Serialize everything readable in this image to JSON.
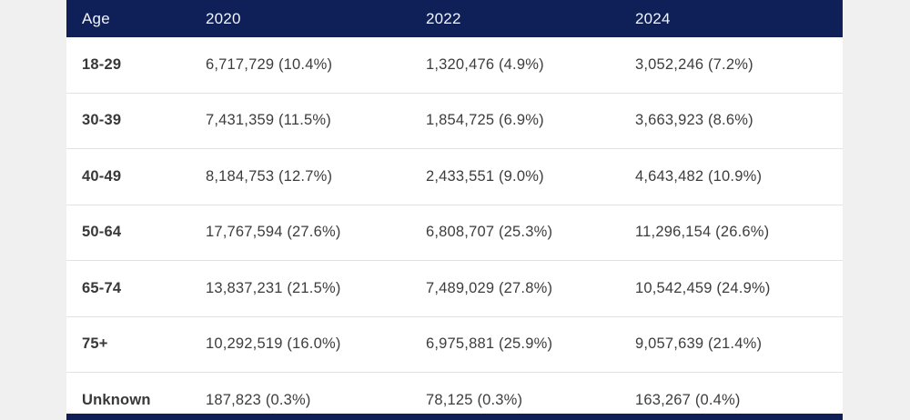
{
  "colors": {
    "header_bg": "#0e2057",
    "header_text": "#f4f5f8",
    "page_bg": "#f0f0f0",
    "row_bg": "#ffffff",
    "row_divider": "#e2e2e4",
    "cell_text": "#3d3d3d"
  },
  "table": {
    "columns": [
      {
        "key": "age",
        "label": "Age"
      },
      {
        "key": "y2020",
        "label": "2020"
      },
      {
        "key": "y2022",
        "label": "2022"
      },
      {
        "key": "y2024",
        "label": "2024"
      }
    ],
    "rows": [
      {
        "age": "18-29",
        "y2020": "6,717,729 (10.4%)",
        "y2022": "1,320,476 (4.9%)",
        "y2024": "3,052,246 (7.2%)"
      },
      {
        "age": "30-39",
        "y2020": "7,431,359 (11.5%)",
        "y2022": "1,854,725 (6.9%)",
        "y2024": "3,663,923 (8.6%)"
      },
      {
        "age": "40-49",
        "y2020": "8,184,753 (12.7%)",
        "y2022": "2,433,551 (9.0%)",
        "y2024": "4,643,482 (10.9%)"
      },
      {
        "age": "50-64",
        "y2020": "17,767,594 (27.6%)",
        "y2022": "6,808,707 (25.3%)",
        "y2024": "11,296,154 (26.6%)"
      },
      {
        "age": "65-74",
        "y2020": "13,837,231 (21.5%)",
        "y2022": "7,489,029 (27.8%)",
        "y2024": "10,542,459 (24.9%)"
      },
      {
        "age": "75+",
        "y2020": "10,292,519 (16.0%)",
        "y2022": "6,975,881 (25.9%)",
        "y2024": "9,057,639 (21.4%)"
      },
      {
        "age": "Unknown",
        "y2020": "187,823 (0.3%)",
        "y2022": "78,125 (0.3%)",
        "y2024": "163,267 (0.4%)"
      }
    ]
  },
  "chart_data": {
    "type": "table",
    "title": "",
    "categories": [
      "18-29",
      "30-39",
      "40-49",
      "50-64",
      "65-74",
      "75+",
      "Unknown"
    ],
    "series": [
      {
        "name": "2020",
        "values": [
          6717729,
          7431359,
          8184753,
          17767594,
          13837231,
          10292519,
          187823
        ],
        "percents": [
          10.4,
          11.5,
          12.7,
          27.6,
          21.5,
          16.0,
          0.3
        ]
      },
      {
        "name": "2022",
        "values": [
          1320476,
          1854725,
          2433551,
          6808707,
          7489029,
          6975881,
          78125
        ],
        "percents": [
          4.9,
          6.9,
          9.0,
          25.3,
          27.8,
          25.9,
          0.3
        ]
      },
      {
        "name": "2024",
        "values": [
          3052246,
          3663923,
          4643482,
          11296154,
          10542459,
          9057639,
          163267
        ],
        "percents": [
          7.2,
          8.6,
          10.9,
          26.6,
          24.9,
          21.4,
          0.4
        ]
      }
    ],
    "xlabel": "Age",
    "legend_position": "header-row"
  }
}
